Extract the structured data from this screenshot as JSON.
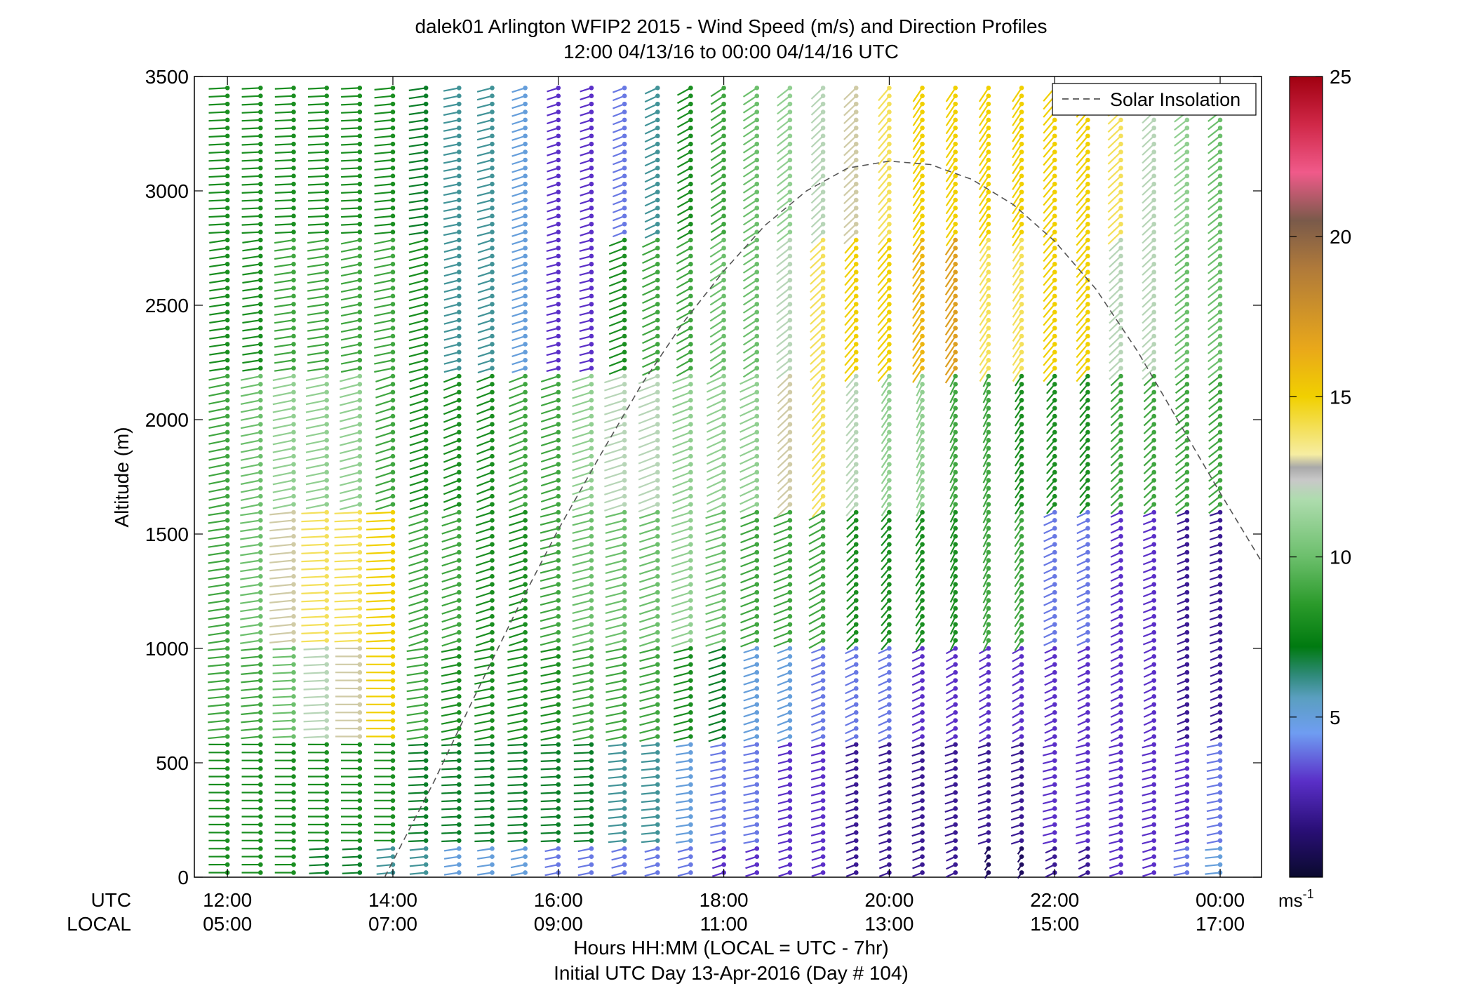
{
  "chart_data": {
    "type": "scatter",
    "title": "dalek01 Arlington WFIP2 2015 - Wind Speed (m/s) and Direction Profiles",
    "subtitle": "12:00 04/13/16 to 00:00 04/14/16  UTC",
    "ylabel": "Altitude (m)",
    "xlabel": "Hours HH:MM  (LOCAL = UTC - 7hr)",
    "xlabel2": "Initial UTC Day 13-Apr-2016 (Day # 104)",
    "ylim": [
      0,
      3500
    ],
    "xlim_hours_utc": [
      11.6,
      24.5
    ],
    "y_ticks": [
      0,
      500,
      1000,
      1500,
      2000,
      2500,
      3000,
      3500
    ],
    "x_row_label_utc": "UTC",
    "x_row_label_local": "LOCAL",
    "x_ticks_utc": [
      "12:00",
      "14:00",
      "16:00",
      "18:00",
      "20:00",
      "22:00",
      "00:00"
    ],
    "x_ticks_local": [
      "05:00",
      "07:00",
      "09:00",
      "11:00",
      "13:00",
      "15:00",
      "17:00"
    ],
    "x_tick_hours": [
      12,
      14,
      16,
      18,
      20,
      22,
      24
    ],
    "legend": {
      "entry": "Solar Insolation",
      "style": "dashed",
      "placement": "top-right"
    },
    "colorbar": {
      "ticks": [
        5,
        10,
        15,
        20,
        25
      ],
      "range": [
        0,
        25
      ],
      "unit_base": "ms",
      "unit_exp": "-1",
      "stops": [
        {
          "v": 0.0,
          "c": "#0a0a2e"
        },
        {
          "v": 1.5,
          "c": "#2a0f78"
        },
        {
          "v": 3.0,
          "c": "#5a2fc8"
        },
        {
          "v": 4.5,
          "c": "#6f9df2"
        },
        {
          "v": 5.6,
          "c": "#5a9fc0"
        },
        {
          "v": 6.3,
          "c": "#2f8a7a"
        },
        {
          "v": 7.2,
          "c": "#007a10"
        },
        {
          "v": 8.5,
          "c": "#2a9a2a"
        },
        {
          "v": 10.0,
          "c": "#6cbf6c"
        },
        {
          "v": 11.8,
          "c": "#aedcae"
        },
        {
          "v": 12.4,
          "c": "#c8c8c8"
        },
        {
          "v": 12.8,
          "c": "#a9a9a9"
        },
        {
          "v": 13.2,
          "c": "#f6eda2"
        },
        {
          "v": 15.0,
          "c": "#f1d000"
        },
        {
          "v": 16.5,
          "c": "#e9a81a"
        },
        {
          "v": 19.0,
          "c": "#b07a3a"
        },
        {
          "v": 20.5,
          "c": "#7a5a4a"
        },
        {
          "v": 22.0,
          "c": "#f05a8a"
        },
        {
          "v": 23.5,
          "c": "#d02848"
        },
        {
          "v": 25.0,
          "c": "#a00010"
        }
      ]
    },
    "solar_insolation_curve": {
      "hours": [
        13.9,
        14.5,
        15.0,
        15.5,
        16.0,
        16.5,
        17.0,
        17.5,
        18.0,
        18.5,
        19.0,
        19.5,
        20.0,
        20.5,
        21.0,
        21.5,
        22.0,
        22.5,
        23.0,
        23.5,
        24.0,
        24.5
      ],
      "altitude_m": [
        0,
        420,
        800,
        1170,
        1520,
        1840,
        2150,
        2420,
        2650,
        2850,
        3000,
        3100,
        3130,
        3115,
        3050,
        2940,
        2780,
        2570,
        2300,
        1990,
        1680,
        1380
      ]
    },
    "wind_profiles": {
      "times_hours_utc": [
        12.0,
        12.4,
        12.8,
        13.2,
        13.6,
        14.0,
        14.4,
        14.8,
        15.2,
        15.6,
        16.0,
        16.4,
        16.8,
        17.2,
        17.6,
        18.0,
        18.4,
        18.8,
        19.2,
        19.6,
        20.0,
        20.4,
        20.8,
        21.2,
        21.6,
        22.0,
        22.4,
        22.8,
        23.2,
        23.6,
        24.0
      ],
      "altitude_bands_m": [
        {
          "max": 150,
          "speed_ms": [
            8,
            8,
            8,
            7,
            7,
            6,
            6,
            5,
            5,
            5,
            4,
            4,
            4,
            4,
            4,
            3,
            3,
            3,
            3,
            2,
            2,
            2,
            2,
            1,
            1,
            2,
            2,
            3,
            3,
            4,
            5
          ],
          "dir_deg": [
            270,
            270,
            270,
            265,
            265,
            260,
            260,
            255,
            255,
            250,
            250,
            250,
            245,
            245,
            245,
            240,
            240,
            240,
            240,
            235,
            235,
            235,
            230,
            200,
            200,
            230,
            230,
            240,
            240,
            250,
            260
          ]
        },
        {
          "max": 600,
          "speed_ms": [
            8,
            8,
            8,
            8,
            8,
            8,
            7,
            7,
            7,
            7,
            7,
            7,
            6,
            6,
            5,
            4,
            4,
            3,
            3,
            2,
            2,
            2,
            2,
            2,
            2,
            3,
            3,
            3,
            3,
            3,
            4
          ],
          "dir_deg": [
            270,
            270,
            270,
            270,
            270,
            270,
            265,
            265,
            265,
            265,
            265,
            265,
            260,
            260,
            255,
            250,
            250,
            245,
            245,
            240,
            240,
            240,
            240,
            240,
            240,
            245,
            245,
            245,
            245,
            245,
            250
          ]
        },
        {
          "max": 1000,
          "speed_ms": [
            9,
            9,
            10,
            12,
            13,
            15,
            9,
            8,
            8,
            8,
            8,
            9,
            9,
            9,
            8,
            7,
            5,
            5,
            4,
            4,
            4,
            3,
            3,
            3,
            3,
            3,
            3,
            3,
            3,
            2,
            2
          ],
          "dir_deg": [
            260,
            260,
            265,
            265,
            270,
            270,
            255,
            250,
            250,
            250,
            250,
            250,
            250,
            245,
            245,
            240,
            240,
            235,
            235,
            230,
            230,
            230,
            225,
            225,
            225,
            230,
            230,
            230,
            230,
            235,
            235
          ]
        },
        {
          "max": 1600,
          "speed_ms": [
            9,
            10,
            13,
            14,
            14,
            15,
            9,
            9,
            8,
            8,
            9,
            10,
            10,
            10,
            11,
            10,
            9,
            9,
            9,
            8,
            8,
            8,
            8,
            9,
            9,
            4,
            4,
            3,
            3,
            2,
            2
          ],
          "dir_deg": [
            255,
            255,
            260,
            265,
            265,
            265,
            240,
            240,
            240,
            240,
            245,
            245,
            245,
            240,
            240,
            240,
            235,
            235,
            225,
            210,
            205,
            200,
            195,
            195,
            200,
            230,
            230,
            230,
            235,
            235,
            240
          ]
        },
        {
          "max": 2200,
          "speed_ms": [
            9,
            10,
            11,
            11,
            11,
            9,
            8,
            8,
            8,
            9,
            9,
            11,
            12,
            12,
            11,
            11,
            11,
            13,
            14,
            12,
            11,
            11,
            9,
            9,
            8,
            8,
            8,
            9,
            9,
            9,
            9
          ],
          "dir_deg": [
            250,
            250,
            250,
            250,
            245,
            240,
            240,
            235,
            235,
            235,
            240,
            240,
            240,
            235,
            235,
            230,
            230,
            210,
            205,
            205,
            200,
            195,
            195,
            195,
            200,
            205,
            205,
            210,
            210,
            215,
            215
          ]
        },
        {
          "max": 2800,
          "speed_ms": [
            8,
            8,
            9,
            9,
            9,
            9,
            8,
            6,
            6,
            5,
            3,
            3,
            8,
            9,
            9,
            10,
            10,
            12,
            14,
            15,
            15,
            16,
            17,
            14,
            14,
            15,
            15,
            12,
            12,
            10,
            10
          ],
          "dir_deg": [
            255,
            255,
            255,
            255,
            250,
            250,
            245,
            245,
            240,
            240,
            245,
            245,
            235,
            230,
            225,
            220,
            220,
            215,
            210,
            205,
            205,
            200,
            200,
            200,
            200,
            205,
            205,
            210,
            210,
            215,
            215
          ]
        },
        {
          "max": 3500,
          "speed_ms": [
            8,
            8,
            8,
            8,
            8,
            8,
            7,
            6,
            6,
            5,
            3,
            3,
            4,
            6,
            8,
            9,
            10,
            11,
            12,
            13,
            14,
            15,
            15,
            15,
            15,
            15,
            15,
            14,
            12,
            11,
            10
          ],
          "dir_deg": [
            265,
            265,
            265,
            265,
            265,
            260,
            255,
            250,
            245,
            240,
            240,
            240,
            235,
            230,
            225,
            220,
            220,
            215,
            210,
            210,
            205,
            200,
            200,
            200,
            200,
            205,
            205,
            210,
            210,
            215,
            215
          ]
        }
      ]
    }
  }
}
